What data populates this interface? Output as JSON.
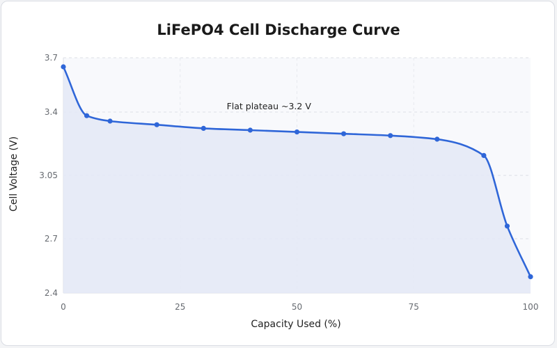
{
  "chart_data": {
    "type": "line",
    "title": "LiFePO4 Cell Discharge Curve",
    "xlabel": "Capacity Used (%)",
    "ylabel": "Cell Voltage (V)",
    "xlim": [
      0,
      100
    ],
    "ylim": [
      2.4,
      3.7
    ],
    "x_ticks": [
      "0",
      "25",
      "50",
      "75",
      "100"
    ],
    "y_ticks": [
      "2.4",
      "2.7",
      "3.05",
      "3.4",
      "3.7"
    ],
    "grid": true,
    "legend": "none",
    "area_fill": true,
    "series": [
      {
        "x": [
          0,
          5,
          10,
          20,
          30,
          40,
          50,
          60,
          70,
          80,
          90,
          95,
          100
        ],
        "values": [
          3.65,
          3.38,
          3.35,
          3.33,
          3.31,
          3.3,
          3.29,
          3.28,
          3.27,
          3.25,
          3.16,
          2.77,
          2.49
        ],
        "color": "#2f66d8"
      }
    ],
    "annotations": [
      {
        "text": "Flat plateau ~3.2 V",
        "x": 44,
        "y": 3.43
      }
    ],
    "colors": {
      "line": "#2f66d8",
      "fill": "#e4e9f6",
      "plot_bg": "#f8f9fc",
      "grid": "#dcdfe6"
    }
  }
}
